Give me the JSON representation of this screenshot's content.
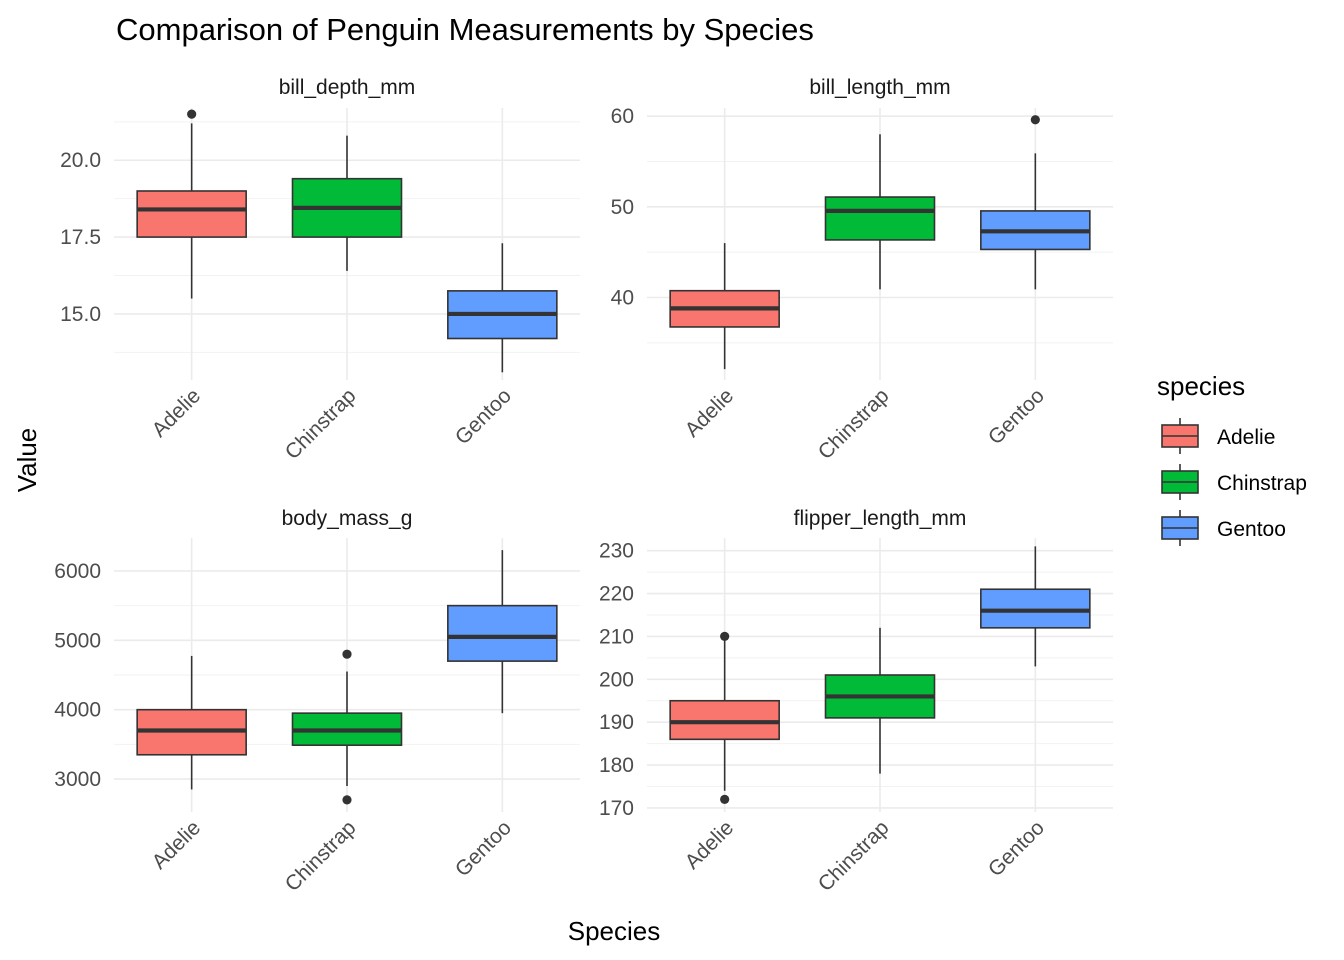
{
  "title": "Comparison of Penguin Measurements by Species",
  "x_axis_title": "Species",
  "y_axis_title": "Value",
  "legend": {
    "title": "species",
    "items": [
      {
        "label": "Adelie",
        "color": "#F8766D"
      },
      {
        "label": "Chinstrap",
        "color": "#00BA38"
      },
      {
        "label": "Gentoo",
        "color": "#619CFF"
      }
    ]
  },
  "chart_data": [
    {
      "type": "boxplot",
      "facet": "bill_depth_mm",
      "categories": [
        "Adelie",
        "Chinstrap",
        "Gentoo"
      ],
      "y_ticks": [
        15.0,
        17.5,
        20.0
      ],
      "y_tick_labels": [
        "15.0",
        "17.5",
        "20.0"
      ],
      "ylim": [
        12.85,
        21.7
      ],
      "boxes": [
        {
          "species": "Adelie",
          "min": 15.5,
          "q1": 17.5,
          "median": 18.4,
          "q3": 19.0,
          "max": 21.2,
          "outliers": [
            21.5
          ]
        },
        {
          "species": "Chinstrap",
          "min": 16.4,
          "q1": 17.5,
          "median": 18.45,
          "q3": 19.4,
          "max": 20.8,
          "outliers": []
        },
        {
          "species": "Gentoo",
          "min": 13.1,
          "q1": 14.2,
          "median": 15.0,
          "q3": 15.75,
          "max": 17.3,
          "outliers": []
        }
      ]
    },
    {
      "type": "boxplot",
      "facet": "bill_length_mm",
      "categories": [
        "Adelie",
        "Chinstrap",
        "Gentoo"
      ],
      "y_ticks": [
        40,
        50,
        60
      ],
      "y_tick_labels": [
        "40",
        "50",
        "60"
      ],
      "ylim": [
        30.9,
        60.9
      ],
      "boxes": [
        {
          "species": "Adelie",
          "min": 32.1,
          "q1": 36.75,
          "median": 38.8,
          "q3": 40.75,
          "max": 46.0,
          "outliers": []
        },
        {
          "species": "Chinstrap",
          "min": 40.9,
          "q1": 46.35,
          "median": 49.55,
          "q3": 51.08,
          "max": 58.0,
          "outliers": []
        },
        {
          "species": "Gentoo",
          "min": 40.9,
          "q1": 45.3,
          "median": 47.3,
          "q3": 49.55,
          "max": 55.9,
          "outliers": [
            59.6
          ]
        }
      ]
    },
    {
      "type": "boxplot",
      "facet": "body_mass_g",
      "categories": [
        "Adelie",
        "Chinstrap",
        "Gentoo"
      ],
      "y_ticks": [
        3000,
        4000,
        5000,
        6000
      ],
      "y_tick_labels": [
        "3000",
        "4000",
        "5000",
        "6000"
      ],
      "ylim": [
        2525,
        6475
      ],
      "boxes": [
        {
          "species": "Adelie",
          "min": 2850,
          "q1": 3350,
          "median": 3700,
          "q3": 4000,
          "max": 4775,
          "outliers": []
        },
        {
          "species": "Chinstrap",
          "min": 2900,
          "q1": 3488,
          "median": 3700,
          "q3": 3950,
          "max": 4550,
          "outliers": [
            2700,
            4800
          ]
        },
        {
          "species": "Gentoo",
          "min": 3950,
          "q1": 4700,
          "median": 5050,
          "q3": 5500,
          "max": 6300,
          "outliers": []
        }
      ]
    },
    {
      "type": "boxplot",
      "facet": "flipper_length_mm",
      "categories": [
        "Adelie",
        "Chinstrap",
        "Gentoo"
      ],
      "y_ticks": [
        170,
        180,
        190,
        200,
        210,
        220,
        230
      ],
      "y_tick_labels": [
        "170",
        "180",
        "190",
        "200",
        "210",
        "220",
        "230"
      ],
      "ylim": [
        169.05,
        232.95
      ],
      "boxes": [
        {
          "species": "Adelie",
          "min": 174,
          "q1": 186,
          "median": 190,
          "q3": 195,
          "max": 210,
          "outliers": [
            172,
            210
          ]
        },
        {
          "species": "Chinstrap",
          "min": 178,
          "q1": 191,
          "median": 196,
          "q3": 201,
          "max": 212,
          "outliers": []
        },
        {
          "species": "Gentoo",
          "min": 203,
          "q1": 212,
          "median": 216,
          "q3": 221,
          "max": 231,
          "outliers": []
        }
      ]
    }
  ]
}
